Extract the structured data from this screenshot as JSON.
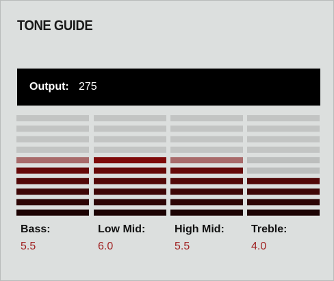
{
  "header": {
    "title": "TONE GUIDE"
  },
  "output": {
    "label": "Output:",
    "value": 275
  },
  "bands": [
    {
      "label": "Bass:",
      "value": 5.5,
      "value_label": "5.5"
    },
    {
      "label": "Low Mid:",
      "value": 6,
      "value_label": "6.0"
    },
    {
      "label": "High Mid:",
      "value": 5.5,
      "value_label": "5.5"
    },
    {
      "label": "Treble:",
      "value": 4,
      "value_label": "4.0"
    }
  ]
}
